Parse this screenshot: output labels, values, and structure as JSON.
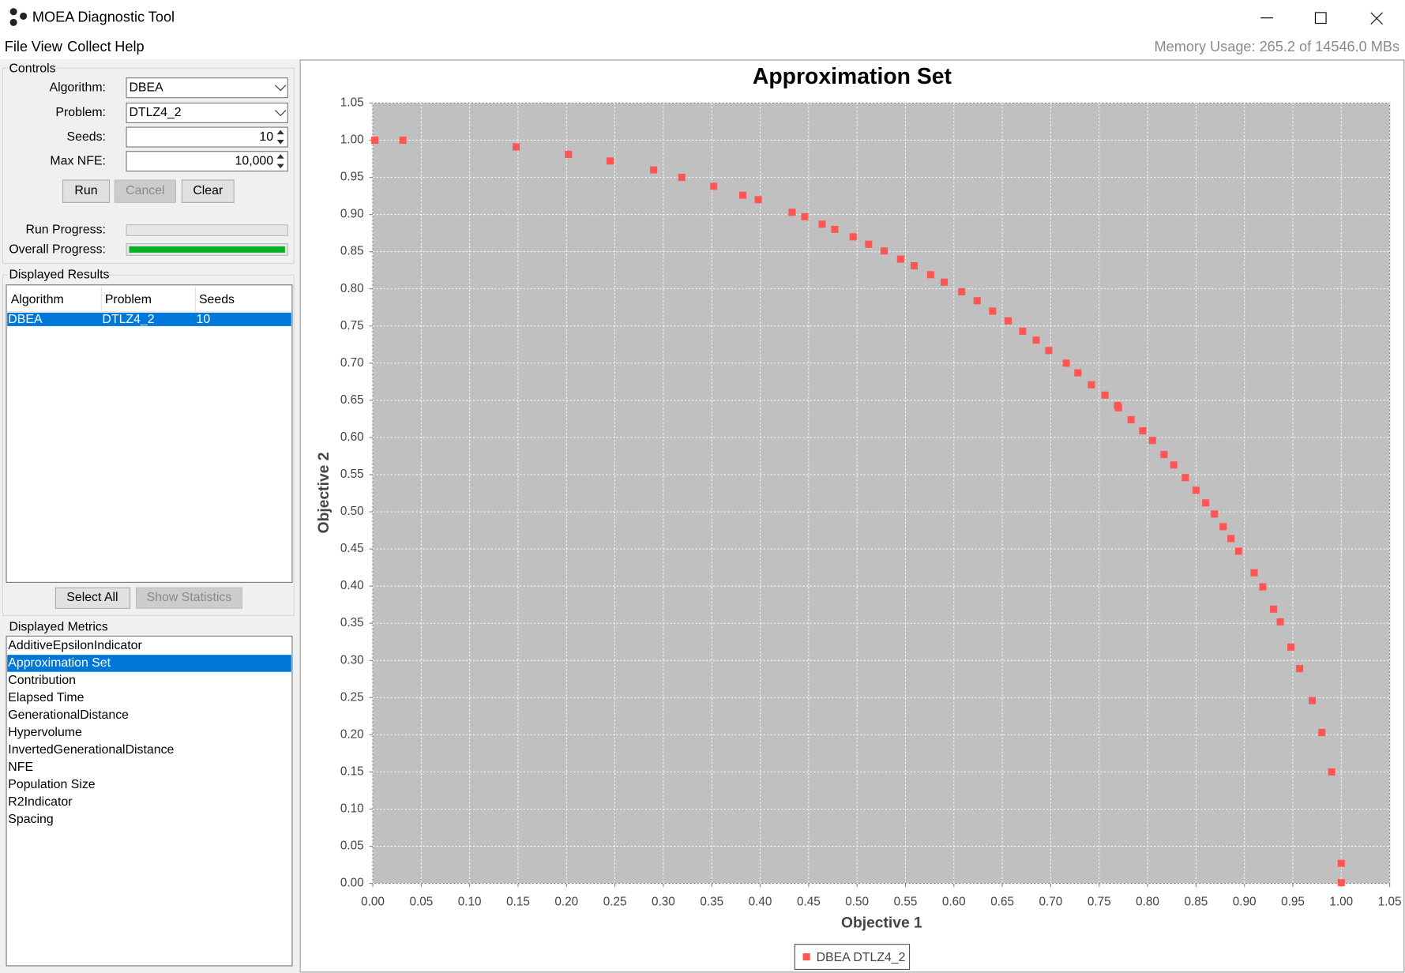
{
  "window": {
    "title": "MOEA Diagnostic Tool"
  },
  "menu": [
    "File",
    "View",
    "Collect",
    "Help"
  ],
  "memory": "Memory Usage: 265.2 of 14546.0 MBs",
  "controls": {
    "title": "Controls",
    "algorithm_label": "Algorithm:",
    "algorithm": "DBEA",
    "problem_label": "Problem:",
    "problem": "DTLZ4_2",
    "seeds_label": "Seeds:",
    "seeds": "10",
    "nfe_label": "Max NFE:",
    "nfe": "10,000",
    "run": "Run",
    "cancel": "Cancel",
    "clear": "Clear",
    "run_progress": "Run Progress:",
    "overall_progress": "Overall Progress:"
  },
  "results": {
    "title": "Displayed Results",
    "columns": [
      "Algorithm",
      "Problem",
      "Seeds"
    ],
    "rows": [
      [
        "DBEA",
        "DTLZ4_2",
        "10"
      ]
    ],
    "select_all": "Select All",
    "show_statistics": "Show Statistics"
  },
  "metrics": {
    "title": "Displayed Metrics",
    "items": [
      "AdditiveEpsilonIndicator",
      "Approximation Set",
      "Contribution",
      "Elapsed Time",
      "GenerationalDistance",
      "Hypervolume",
      "InvertedGenerationalDistance",
      "NFE",
      "Population Size",
      "R2Indicator",
      "Spacing"
    ]
  },
  "chart_data": {
    "type": "scatter",
    "title": "Approximation Set",
    "x_label": "Objective 1",
    "y_label": "Objective 2",
    "grid": true,
    "xlim": [
      0,
      1.05
    ],
    "ylim": [
      0,
      1.05
    ],
    "xticks": [
      {
        "value": 0,
        "label": "0.00"
      },
      0.05,
      {
        "value": 0.1,
        "label": "0.10"
      },
      0.15,
      {
        "value": 0.2,
        "label": "0.20"
      },
      0.25,
      {
        "value": 0.3,
        "label": "0.30"
      },
      0.35,
      {
        "value": 0.4,
        "label": "0.40"
      },
      0.45,
      {
        "value": 0.5,
        "label": "0.50"
      },
      0.55,
      {
        "value": 0.6,
        "label": "0.60"
      },
      0.65,
      {
        "value": 0.7,
        "label": "0.70"
      },
      0.75,
      {
        "value": 0.8,
        "label": "0.80"
      },
      0.85,
      {
        "value": 0.9,
        "label": "0.90"
      },
      0.95,
      {
        "value": 1,
        "label": "1.00"
      },
      1.05
    ],
    "yticks": [
      {
        "value": 0,
        "label": "0.00"
      },
      0.05,
      {
        "value": 0.1,
        "label": "0.10"
      },
      0.15,
      {
        "value": 0.2,
        "label": "0.20"
      },
      0.25,
      {
        "value": 0.3,
        "label": "0.30"
      },
      0.35,
      {
        "value": 0.4,
        "label": "0.40"
      },
      0.45,
      {
        "value": 0.5,
        "label": "0.50"
      },
      0.55,
      {
        "value": 0.6,
        "label": "0.60"
      },
      0.65,
      {
        "value": 0.7,
        "label": "0.70"
      },
      0.75,
      {
        "value": 0.8,
        "label": "0.80"
      },
      0.85,
      {
        "value": 0.9,
        "label": "0.90"
      },
      0.95,
      {
        "value": 1,
        "label": "1.00"
      },
      1.05
    ],
    "series": [
      {
        "name": "DBEA DTLZ4_2",
        "color": "#ff5555",
        "x": [
          0.002,
          0.031,
          0.148,
          0.202,
          0.245,
          0.29,
          0.319,
          0.352,
          0.382,
          0.398,
          0.433,
          0.446,
          0.464,
          0.477,
          0.496,
          0.512,
          0.528,
          0.545,
          0.559,
          0.576,
          0.59,
          0.608,
          0.624,
          0.64,
          0.656,
          0.671,
          0.685,
          0.698,
          0.716,
          0.728,
          0.742,
          0.756,
          0.769,
          0.77,
          0.783,
          0.795,
          0.805,
          0.817,
          0.827,
          0.839,
          0.85,
          0.86,
          0.869,
          0.878,
          0.886,
          0.894,
          0.91,
          0.919,
          0.93,
          0.937,
          0.948,
          0.957,
          0.97,
          0.98,
          0.99,
          1.0,
          1.0
        ],
        "values": [
          1.0,
          1.0,
          0.991,
          0.981,
          0.972,
          0.96,
          0.95,
          0.938,
          0.926,
          0.92,
          0.903,
          0.897,
          0.887,
          0.88,
          0.87,
          0.86,
          0.851,
          0.84,
          0.831,
          0.819,
          0.809,
          0.796,
          0.784,
          0.77,
          0.757,
          0.743,
          0.731,
          0.717,
          0.7,
          0.687,
          0.671,
          0.657,
          0.643,
          0.64,
          0.624,
          0.609,
          0.596,
          0.577,
          0.563,
          0.546,
          0.529,
          0.512,
          0.497,
          0.48,
          0.464,
          0.447,
          0.418,
          0.399,
          0.369,
          0.352,
          0.318,
          0.289,
          0.246,
          0.203,
          0.15,
          0.027,
          0.001
        ]
      }
    ]
  }
}
